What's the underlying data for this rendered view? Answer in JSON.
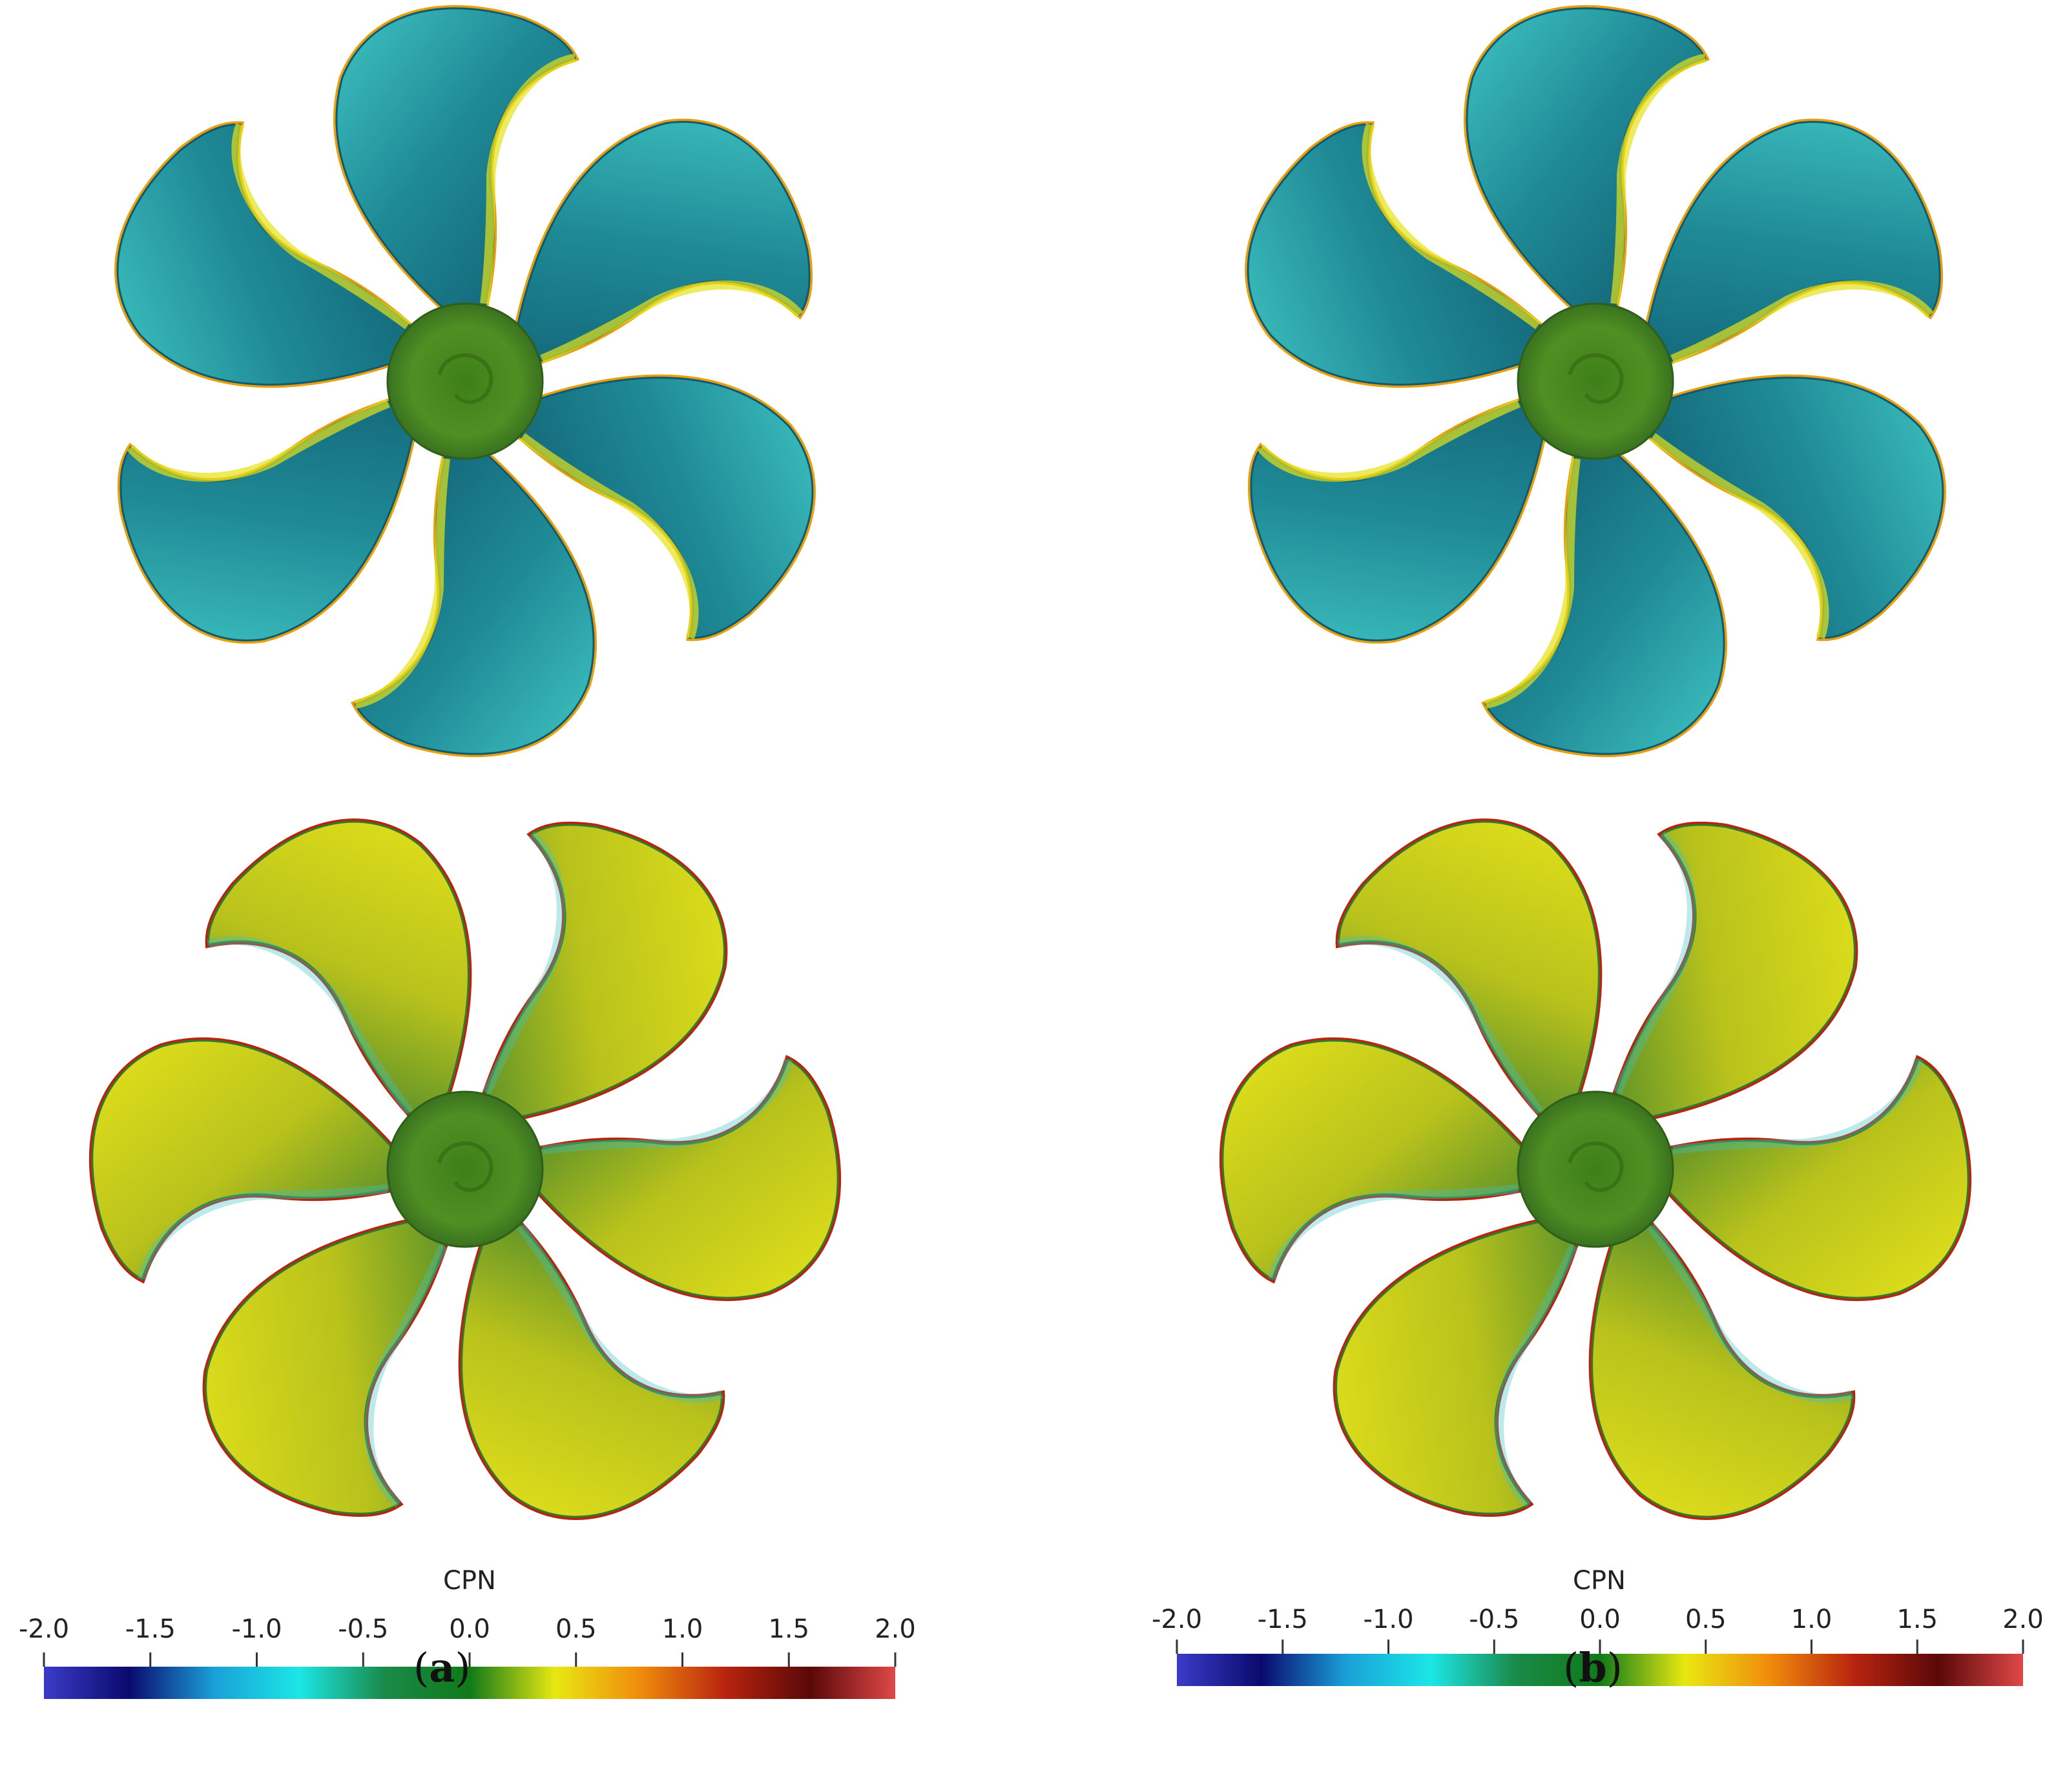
{
  "colors": {
    "background": "#ffffff",
    "hub": "#4f8f22",
    "suction_main": "#1f8a96",
    "suction_light": "#3fc4c2",
    "suction_dark": "#0f5a6e",
    "pressure_main": "#b9c21c",
    "pressure_light": "#e4e21a",
    "pressure_dark": "#2f7a2e",
    "edge_red": "#b8240f",
    "edge_orange": "#e8a010"
  },
  "panels": [
    {
      "id": "a",
      "label_open": "(",
      "label_letter": "a",
      "label_close": ")",
      "colorbar": {
        "title": "CPN",
        "ticks": [
          "-2.0",
          "-1.5",
          "-1.0",
          "-0.5",
          "0.0",
          "0.5",
          "1.0",
          "1.5",
          "2.0"
        ],
        "gradient": [
          "#3b3bc8",
          "#0a0a6e",
          "#1aa0d8",
          "#1ce6e6",
          "#1a8a4a",
          "#0f7a18",
          "#e8e812",
          "#f08c0c",
          "#b8240f",
          "#5a0808",
          "#e04848"
        ]
      }
    },
    {
      "id": "b",
      "label_open": "(",
      "label_letter": "b",
      "label_close": ")",
      "colorbar": {
        "title": "CPN",
        "ticks": [
          "-2.0",
          "-1.5",
          "-1.0",
          "-0.5",
          "0.0",
          "0.5",
          "1.0",
          "1.5",
          "2.0"
        ],
        "gradient": [
          "#3b3bc8",
          "#0a0a6e",
          "#1aa0d8",
          "#1ce6e6",
          "#1a8a4a",
          "#0f7a18",
          "#e8e812",
          "#f08c0c",
          "#b8240f",
          "#5a0808",
          "#e04848"
        ]
      }
    }
  ]
}
